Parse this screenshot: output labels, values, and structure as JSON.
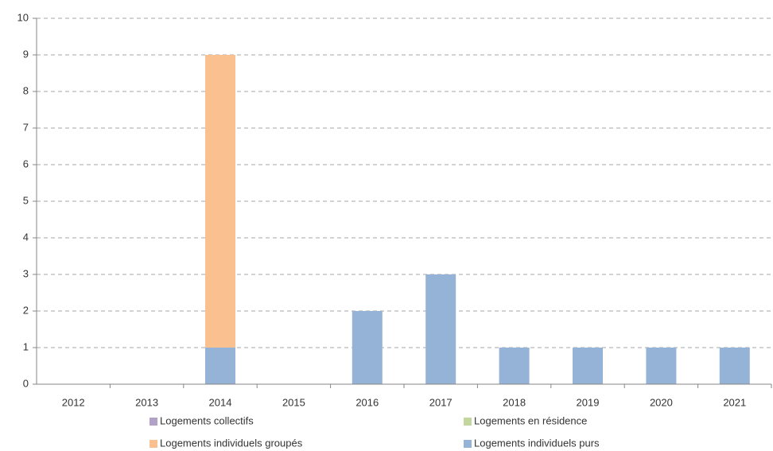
{
  "chart_data": {
    "type": "stacked_bar",
    "categories": [
      "2012",
      "2013",
      "2014",
      "2015",
      "2016",
      "2017",
      "2018",
      "2019",
      "2020",
      "2021"
    ],
    "series": [
      {
        "name": "Logements collectifs",
        "color": "#b3a2c7",
        "values": [
          0,
          0,
          0,
          0,
          0,
          0,
          0,
          0,
          0,
          0
        ]
      },
      {
        "name": "Logements en résidence",
        "color": "#c3d69b",
        "values": [
          0,
          0,
          0,
          0,
          0,
          0,
          0,
          0,
          0,
          0
        ]
      },
      {
        "name": "Logements individuels groupés",
        "color": "#fac090",
        "values": [
          0,
          0,
          8,
          0,
          0,
          0,
          0,
          0,
          0,
          0
        ]
      },
      {
        "name": "Logements individuels purs",
        "color": "#95b3d7",
        "values": [
          0,
          0,
          1,
          0,
          2,
          3,
          1,
          1,
          1,
          1
        ]
      }
    ],
    "ylim": [
      0,
      10
    ],
    "yticks": [
      0,
      1,
      2,
      3,
      4,
      5,
      6,
      7,
      8,
      9,
      10
    ],
    "grid": true,
    "legend": "bottom"
  }
}
